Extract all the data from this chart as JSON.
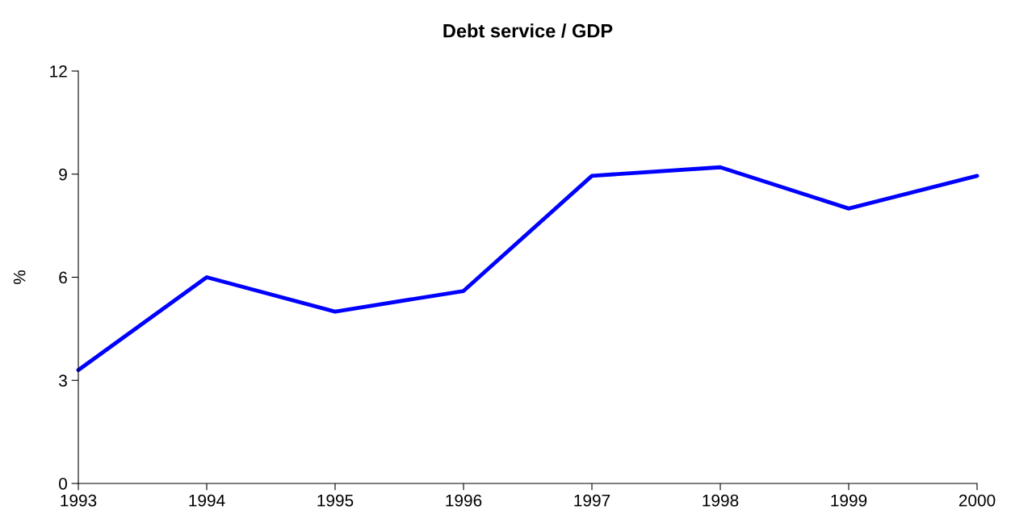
{
  "chart_data": {
    "type": "line",
    "title": "Debt service / GDP",
    "ylabel": "%",
    "x": [
      1993,
      1994,
      1995,
      1996,
      1997,
      1998,
      1999,
      2000
    ],
    "series": [
      {
        "color": "#0000ff",
        "values": [
          3.3,
          6.0,
          5.0,
          5.6,
          8.95,
          9.2,
          8.0,
          8.95
        ]
      }
    ],
    "xlim": [
      1993,
      2000
    ],
    "xticks": [
      1993,
      1994,
      1995,
      1996,
      1997,
      1998,
      1999,
      2000
    ],
    "ylim": [
      0,
      12
    ],
    "yticks": [
      0,
      3,
      6,
      9,
      12
    ],
    "grid": false,
    "legend": false,
    "marker": "none",
    "line_style": "solid"
  }
}
